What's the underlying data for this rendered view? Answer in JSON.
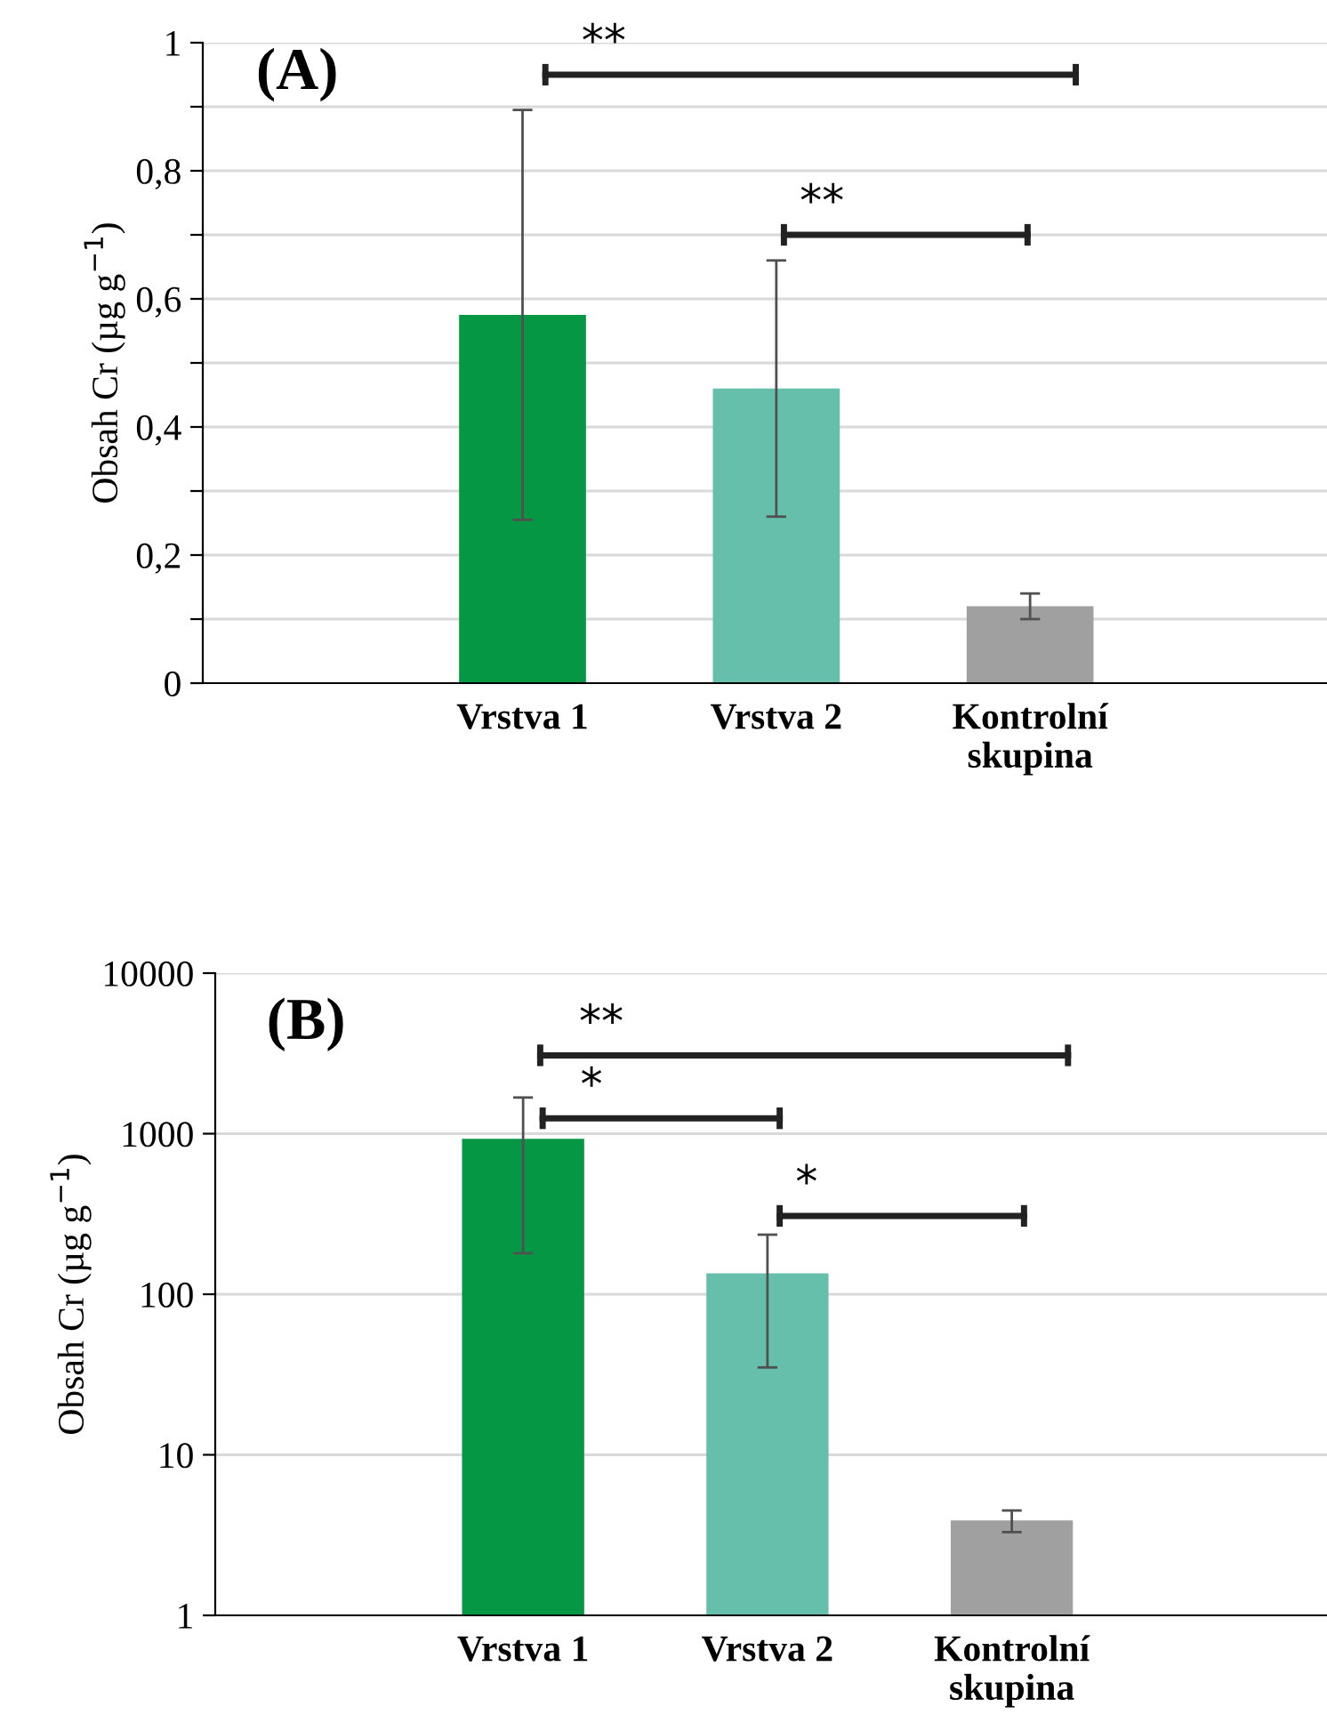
{
  "chart_data": [
    {
      "type": "bar",
      "ylabel": "Obsah Cr (µg g$^{−1}$)",
      "categories": [
        "Vrstva 1",
        "Vrstva 2",
        "Kontrolní\nskupina"
      ],
      "values": [
        0.575,
        0.46,
        0.12
      ],
      "errors": [
        0.32,
        0.2,
        0.02
      ],
      "colors": [
        "#069745",
        "#66bfab",
        "#a0a0a0"
      ],
      "ylim": [
        0,
        1
      ],
      "yticks": [
        0,
        {
          "value": 0.1,
          "label": null
        },
        {
          "value": 0.2,
          "label": "0,2"
        },
        {
          "value": 0.3,
          "label": null
        },
        {
          "value": 0.4,
          "label": "0,4"
        },
        {
          "value": 0.5,
          "label": null
        },
        {
          "value": 0.6,
          "label": "0,6"
        },
        {
          "value": 0.7,
          "label": null
        },
        {
          "value": 0.8,
          "label": "0,8"
        },
        {
          "value": 0.9,
          "label": null
        },
        1
      ],
      "grid": "y",
      "annotations": [
        "(A)",
        "**",
        "**"
      ]
    },
    {
      "type": "bar",
      "ylabel": "Obsah Cr (µg g$^{−1}$)",
      "categories": [
        "Vrstva 1",
        "Vrstva 2",
        "Kontrolní\nskupina"
      ],
      "values": [
        930,
        135,
        3.9
      ],
      "errors": [
        750,
        100,
        0.6
      ],
      "colors": [
        "#069745",
        "#66bfab",
        "#a0a0a0"
      ],
      "log": true,
      "ylim": [
        1,
        10000
      ],
      "yticks": [
        1,
        10,
        100,
        1000,
        10000
      ],
      "grid": "y",
      "annotations": [
        "(B)",
        "**",
        "*",
        "*"
      ]
    }
  ]
}
